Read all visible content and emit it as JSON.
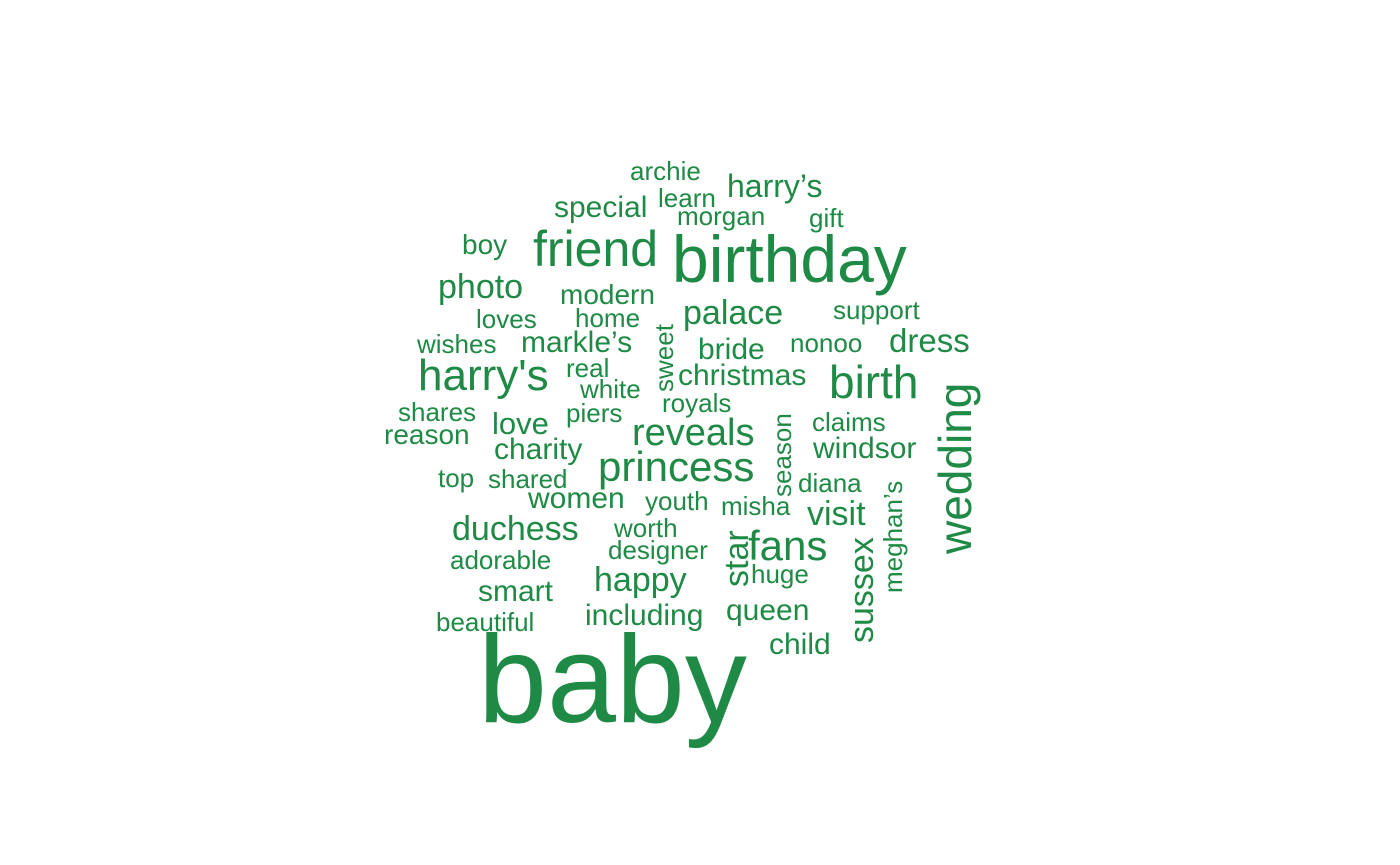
{
  "word_cloud": {
    "color": "#1f8a45",
    "words": {
      "baby": "baby",
      "birthday": "birthday",
      "friend": "friend",
      "harrys": "harry's",
      "birth": "birth",
      "princess": "princess",
      "fans": "fans",
      "reveals": "reveals",
      "duchess": "duchess",
      "palace": "palace",
      "photo": "photo",
      "happy": "happy",
      "visit": "visit",
      "dress": "dress",
      "harrys2": "harry’s",
      "love": "love",
      "windsor": "windsor",
      "christmas": "christmas",
      "charity": "charity",
      "women": "women",
      "markles": "markle’s",
      "special": "special",
      "smart": "smart",
      "including": "including",
      "queen": "queen",
      "child": "child",
      "bride": "bride",
      "modern": "modern",
      "reason": "reason",
      "boy": "boy",
      "adorable": "adorable",
      "beautiful": "beautiful",
      "wishes": "wishes",
      "loves": "loves",
      "shares": "shares",
      "top": "top",
      "shared": "shared",
      "youth": "youth",
      "worth": "worth",
      "designer": "designer",
      "misha": "misha",
      "huge": "huge",
      "diana": "diana",
      "claims": "claims",
      "nonoo": "nonoo",
      "support": "support",
      "home": "home",
      "real": "real",
      "white": "white",
      "piers": "piers",
      "royals": "royals",
      "archie": "archie",
      "learn": "learn",
      "morgan": "morgan",
      "gift": "gift",
      "wedding": "wedding",
      "sussex": "sussex",
      "star": "star",
      "season": "season",
      "sweet": "sweet",
      "meghans": "meghan’s"
    }
  }
}
